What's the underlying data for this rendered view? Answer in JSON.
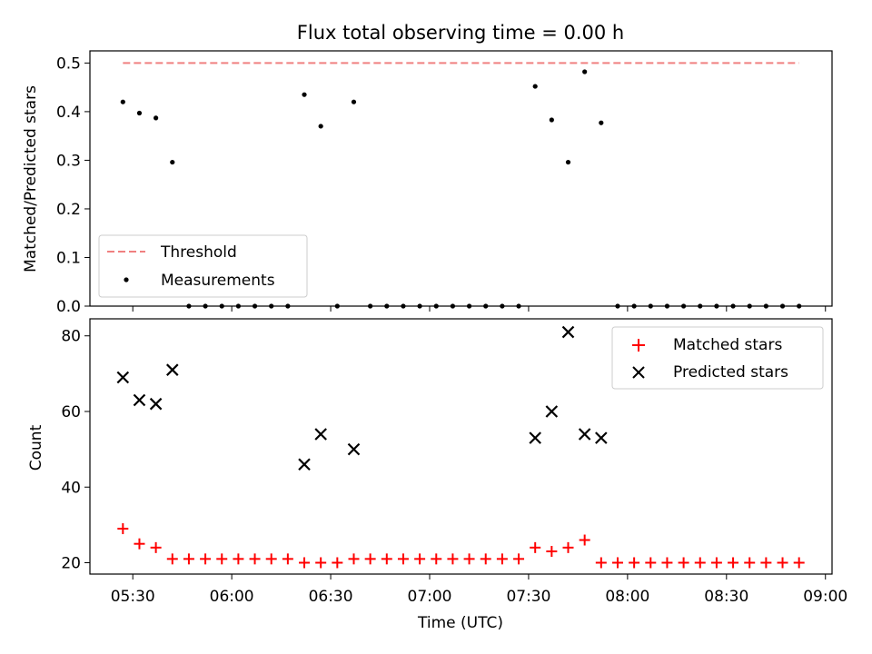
{
  "chart_data": [
    {
      "type": "scatter",
      "title": "Flux total observing time = 0.00 h",
      "xlabel": "",
      "ylabel": "Matched/Predicted stars",
      "xlim": [
        "05:17",
        "09:02"
      ],
      "ylim": [
        0,
        0.525
      ],
      "yticks": [
        "0.0",
        "0.1",
        "0.2",
        "0.3",
        "0.4",
        "0.5"
      ],
      "legend_position": "lower-left",
      "series": [
        {
          "name": "Threshold",
          "style": "dashed-line",
          "color": "#f08080",
          "x": [
            "05:27",
            "08:52"
          ],
          "y": [
            0.5,
            0.5
          ]
        },
        {
          "name": "Measurements",
          "style": "dot",
          "color": "#000000",
          "x": [
            "05:27",
            "05:32",
            "05:37",
            "05:42",
            "05:47",
            "05:52",
            "05:57",
            "06:02",
            "06:07",
            "06:12",
            "06:17",
            "06:22",
            "06:27",
            "06:32",
            "06:37",
            "06:42",
            "06:47",
            "06:52",
            "06:57",
            "07:02",
            "07:07",
            "07:12",
            "07:17",
            "07:22",
            "07:27",
            "07:32",
            "07:37",
            "07:42",
            "07:47",
            "07:52",
            "07:57",
            "08:02",
            "08:07",
            "08:12",
            "08:17",
            "08:22",
            "08:27",
            "08:32",
            "08:37",
            "08:42",
            "08:47",
            "08:52"
          ],
          "y": [
            0.42,
            0.397,
            0.387,
            0.296,
            0,
            0,
            0,
            0,
            0,
            0,
            0,
            0.435,
            0.37,
            0,
            0.42,
            0,
            0,
            0,
            0,
            0,
            0,
            0,
            0,
            0,
            0,
            0.452,
            0.383,
            0.296,
            0.482,
            0.377,
            0,
            0,
            0,
            0,
            0,
            0,
            0,
            0,
            0,
            0,
            0,
            0
          ]
        }
      ]
    },
    {
      "type": "scatter",
      "title": "",
      "xlabel": "Time (UTC)",
      "ylabel": "Count",
      "xlim": [
        "05:17",
        "09:02"
      ],
      "ylim": [
        17,
        84.5
      ],
      "yticks": [
        "20",
        "40",
        "60",
        "80"
      ],
      "xticks": [
        "05:30",
        "06:00",
        "06:30",
        "07:00",
        "07:30",
        "08:00",
        "08:30",
        "09:00"
      ],
      "legend_position": "upper-right",
      "series": [
        {
          "name": "Matched stars",
          "marker": "plus",
          "color": "#ff0000",
          "x": [
            "05:27",
            "05:32",
            "05:37",
            "05:42",
            "05:47",
            "05:52",
            "05:57",
            "06:02",
            "06:07",
            "06:12",
            "06:17",
            "06:22",
            "06:27",
            "06:32",
            "06:37",
            "06:42",
            "06:47",
            "06:52",
            "06:57",
            "07:02",
            "07:07",
            "07:12",
            "07:17",
            "07:22",
            "07:27",
            "07:32",
            "07:37",
            "07:42",
            "07:47",
            "07:52",
            "07:57",
            "08:02",
            "08:07",
            "08:12",
            "08:17",
            "08:22",
            "08:27",
            "08:32",
            "08:37",
            "08:42",
            "08:47",
            "08:52"
          ],
          "y": [
            29,
            25,
            24,
            21,
            21,
            21,
            21,
            21,
            21,
            21,
            21,
            20,
            20,
            20,
            21,
            21,
            21,
            21,
            21,
            21,
            21,
            21,
            21,
            21,
            21,
            24,
            23,
            24,
            26,
            20,
            20,
            20,
            20,
            20,
            20,
            20,
            20,
            20,
            20,
            20,
            20,
            20
          ]
        },
        {
          "name": "Predicted stars",
          "marker": "x",
          "color": "#000000",
          "x": [
            "05:27",
            "05:32",
            "05:37",
            "05:42",
            "06:22",
            "06:27",
            "06:37",
            "07:32",
            "07:37",
            "07:42",
            "07:47",
            "07:52"
          ],
          "y": [
            69,
            63,
            62,
            71,
            46,
            54,
            50,
            53,
            60,
            81,
            54,
            53
          ]
        }
      ]
    }
  ]
}
